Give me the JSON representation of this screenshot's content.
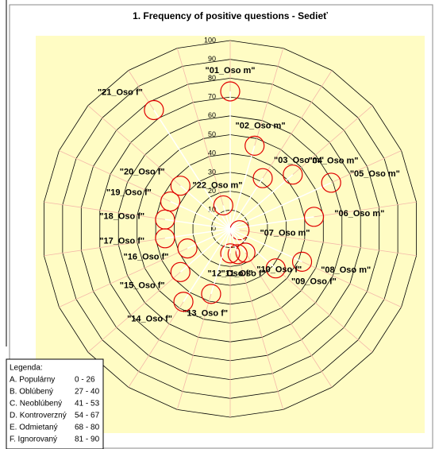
{
  "chart_data": {
    "type": "radar",
    "title": "1. Frequency of positive questions - Sedieť",
    "categories": [
      "\"01_Oso m\"",
      "\"02_Oso m\"",
      "\"03_Oso m\"",
      "\"04_Oso m\"",
      "\"05_Oso m\"",
      "\"06_Oso m\"",
      "\"07_Oso m\"",
      "\"08_Oso m\"",
      "\"09_Oso f\"",
      "\"10_Oso f\"",
      "\"11_Oso f\"",
      "\"12_Oso f\"",
      "\"13_Oso f\"",
      "\"14_Oso f\"",
      "\"15_Oso f\"",
      "\"16_Oso f\"",
      "\"17_Oso f\"",
      "\"18_Oso f\"",
      "\"19_Oso f\"",
      "\"20_Oso f\"",
      "\"21_Oso f\"",
      "\"22_Oso m\""
    ],
    "values": [
      73,
      46,
      32,
      44,
      59,
      45,
      5,
      42,
      32,
      15,
      14,
      13,
      36,
      46,
      35,
      25,
      35,
      35,
      35,
      35,
      75,
      13
    ],
    "color": "#e00000",
    "ylim": [
      0,
      100
    ],
    "yticks": [
      0,
      10,
      20,
      30,
      40,
      50,
      60,
      70,
      80,
      90,
      100
    ],
    "grid": true,
    "legend": {
      "title": "Legenda:",
      "items": [
        {
          "label": "A. Populárny",
          "range": "0 - 26"
        },
        {
          "label": "B. Oblúbený",
          "range": "27 - 40"
        },
        {
          "label": "C. Neoblúbený",
          "range": "41 - 53"
        },
        {
          "label": "D. Kontroverzný",
          "range": "54 - 67"
        },
        {
          "label": "E. Odmietaný",
          "range": "68 - 80"
        },
        {
          "label": "F. Ignorovaný",
          "range": "81 - 90"
        }
      ]
    }
  }
}
